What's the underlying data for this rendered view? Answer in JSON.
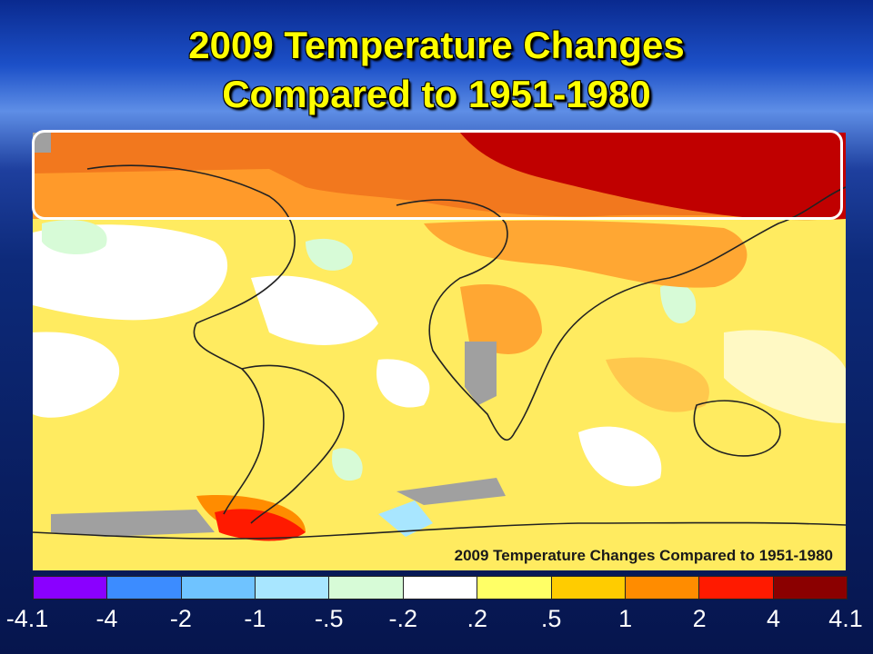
{
  "title": {
    "line1": "2009 Temperature Changes",
    "line2": "Compared to 1951-1980"
  },
  "map": {
    "caption": "2009 Temperature Changes Compared to 1951-1980"
  },
  "legend": {
    "colors": [
      "#8a00ff",
      "#3c8cff",
      "#6fc3ff",
      "#a8e6ff",
      "#d7fbd7",
      "#ffffff",
      "#ffff66",
      "#ffcc00",
      "#ff8c00",
      "#ff1a00",
      "#8b0000"
    ],
    "ticks": [
      "-4.1",
      "-4",
      "-2",
      "-1",
      "-.5",
      "-.2",
      ".2",
      ".5",
      "1",
      "2",
      "4",
      "4.1"
    ]
  },
  "colors": {
    "title": "#ffff00",
    "highlight_border": "#ffffff",
    "no_data": "#a0a0a0"
  }
}
